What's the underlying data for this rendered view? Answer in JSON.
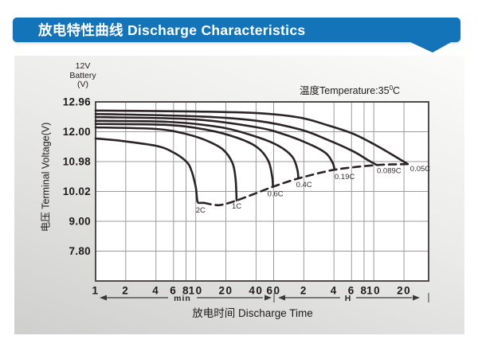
{
  "header": {
    "title": "放电特性曲线 Discharge Characteristics"
  },
  "panel": {
    "battery_label": [
      "12V",
      "Battery",
      "(V)"
    ],
    "temperature": {
      "prefix": "温度Temperature:35",
      "degree": "0",
      "unit": "C"
    }
  },
  "chart_data": {
    "type": "line",
    "title": "Discharge Characteristics",
    "temperature_note": "温度Temperature:35°C",
    "x_axis": {
      "title": "放电时间 Discharge Time",
      "scale": "logarithmic-time",
      "groups": [
        {
          "unit": "min",
          "ticks": [
            1,
            2,
            4,
            6,
            8,
            10,
            20,
            40,
            60
          ]
        },
        {
          "unit": "H",
          "ticks": [
            2,
            4,
            6,
            8,
            10,
            20
          ]
        }
      ]
    },
    "y_axis": {
      "title": "电压 Terminal Voltage(V)",
      "tick_labels": [
        "12.96",
        "12.00",
        "10.98",
        "10.02",
        "9.00",
        "7.80"
      ]
    },
    "grid": true,
    "series": [
      {
        "name": "2C",
        "points_min_v": [
          [
            1,
            11.77
          ],
          [
            1.8,
            11.69
          ],
          [
            4,
            11.52
          ],
          [
            5.7,
            11.33
          ],
          [
            7.9,
            11.01
          ],
          [
            9,
            10.72
          ],
          [
            10,
            10.16
          ],
          [
            10.4,
            9.68
          ],
          [
            11.2,
            9.63
          ],
          [
            12,
            9.63
          ]
        ],
        "label_offset": [
          -10,
          12
        ]
      },
      {
        "name": "1C",
        "points_min_v": [
          [
            1,
            12.14
          ],
          [
            4,
            12.09
          ],
          [
            7.9,
            11.93
          ],
          [
            13,
            11.69
          ],
          [
            18.7,
            11.39
          ],
          [
            23.3,
            10.93
          ],
          [
            25,
            10.42
          ],
          [
            25.6,
            9.71
          ]
        ],
        "label_offset": [
          -6,
          10
        ]
      },
      {
        "name": "0.6C",
        "points_min_v": [
          [
            1,
            12.25
          ],
          [
            5.2,
            12.22
          ],
          [
            13,
            12.06
          ],
          [
            25.6,
            11.8
          ],
          [
            41,
            11.47
          ],
          [
            53,
            11.01
          ],
          [
            58,
            10.49
          ],
          [
            59,
            10.17
          ]
        ],
        "label_offset": [
          -7,
          12
        ]
      },
      {
        "name": "0.4C",
        "points_min_v": [
          [
            1,
            12.35
          ],
          [
            5.2,
            12.32
          ],
          [
            18,
            12.14
          ],
          [
            41,
            11.82
          ],
          [
            67,
            11.52
          ],
          [
            92,
            11.15
          ],
          [
            103,
            10.75
          ],
          [
            106,
            10.44
          ]
        ],
        "label_offset": [
          -3,
          11
        ]
      },
      {
        "name": "0.19C",
        "points_min_v": [
          [
            1,
            12.47
          ],
          [
            9.5,
            12.4
          ],
          [
            41,
            12.14
          ],
          [
            81,
            11.88
          ],
          [
            148,
            11.52
          ],
          [
            202,
            11.25
          ],
          [
            234,
            10.93
          ],
          [
            243,
            10.72
          ]
        ],
        "label_offset": [
          0,
          12
        ]
      },
      {
        "name": "0.089C",
        "points_min_v": [
          [
            1,
            12.57
          ],
          [
            9.5,
            12.5
          ],
          [
            41,
            12.35
          ],
          [
            111,
            12.07
          ],
          [
            202,
            11.74
          ],
          [
            373,
            11.33
          ],
          [
            536,
            11.01
          ],
          [
            643,
            10.87
          ]
        ],
        "label_offset": [
          0,
          10
        ]
      },
      {
        "name": "0.05C",
        "points_min_v": [
          [
            1,
            12.68
          ],
          [
            9.5,
            12.65
          ],
          [
            41,
            12.6
          ],
          [
            111,
            12.45
          ],
          [
            202,
            12.22
          ],
          [
            373,
            11.93
          ],
          [
            643,
            11.52
          ],
          [
            997,
            11.14
          ],
          [
            1310,
            10.9
          ]
        ],
        "label_offset": [
          3,
          9
        ]
      }
    ],
    "envelope": {
      "name": "end-of-discharge-envelope",
      "style": "dashed",
      "points_min_v": [
        [
          12,
          9.63
        ],
        [
          17,
          9.55
        ],
        [
          25.6,
          9.71
        ],
        [
          59,
          10.17
        ],
        [
          106,
          10.44
        ],
        [
          243,
          10.72
        ],
        [
          643,
          10.87
        ],
        [
          1310,
          10.9
        ]
      ]
    }
  },
  "colors": {
    "header_blue": "#1474ba",
    "curve": "#2b2326",
    "grid": "#9b9b9b",
    "plot_border": "#514b4d",
    "text": "#1f1b1d"
  }
}
